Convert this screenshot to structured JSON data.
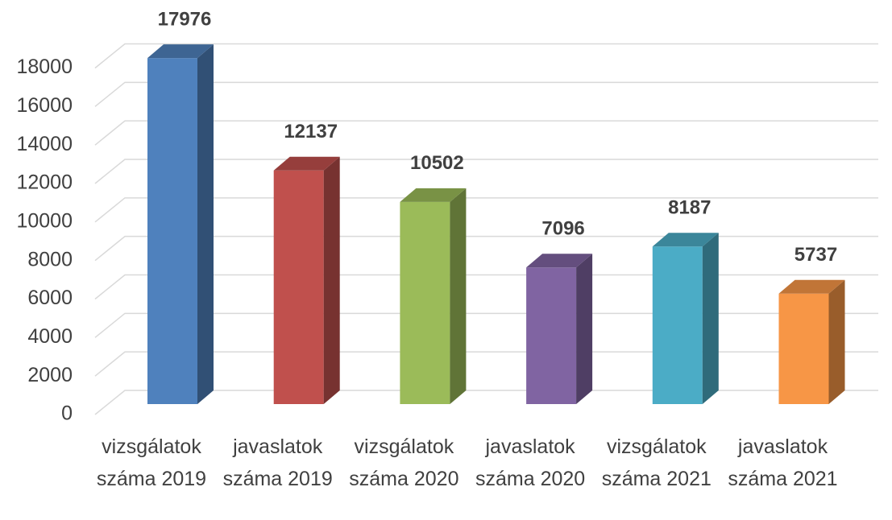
{
  "chart_data": {
    "type": "bar",
    "categories": [
      "vizsgálatok száma 2019",
      "javaslatok száma 2019",
      "vizsgálatok száma 2020",
      "javaslatok száma 2020",
      "vizsgálatok száma 2021",
      "javaslatok száma 2021"
    ],
    "values": [
      17976,
      12137,
      10502,
      7096,
      8187,
      5737
    ],
    "colors": [
      "#4f81bd",
      "#c0504d",
      "#9bbb59",
      "#8064a2",
      "#4bacc6",
      "#f79646"
    ],
    "ylim": [
      0,
      18000
    ],
    "yticks": [
      0,
      2000,
      4000,
      6000,
      8000,
      10000,
      12000,
      14000,
      16000,
      18000
    ],
    "grid": true
  }
}
